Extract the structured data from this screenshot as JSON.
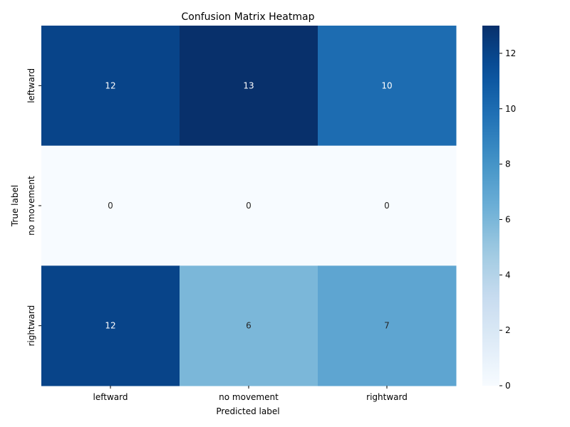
{
  "chart_data": {
    "type": "heatmap",
    "title": "Confusion Matrix Heatmap",
    "xlabel": "Predicted label",
    "ylabel": "True label",
    "x_categories": [
      "leftward",
      "no movement",
      "rightward"
    ],
    "y_categories": [
      "leftward",
      "no movement",
      "rightward"
    ],
    "values": [
      [
        12,
        13,
        10
      ],
      [
        0,
        0,
        0
      ],
      [
        12,
        6,
        7
      ]
    ],
    "colormap": "Blues",
    "color_range": [
      0,
      13
    ],
    "colorbar_ticks": [
      0,
      2,
      4,
      6,
      8,
      10,
      12
    ],
    "colorbar_tick_labels": [
      "0",
      "2",
      "4",
      "6",
      "8",
      "10",
      "12"
    ],
    "grid": false,
    "legend": "colorbar-right"
  }
}
